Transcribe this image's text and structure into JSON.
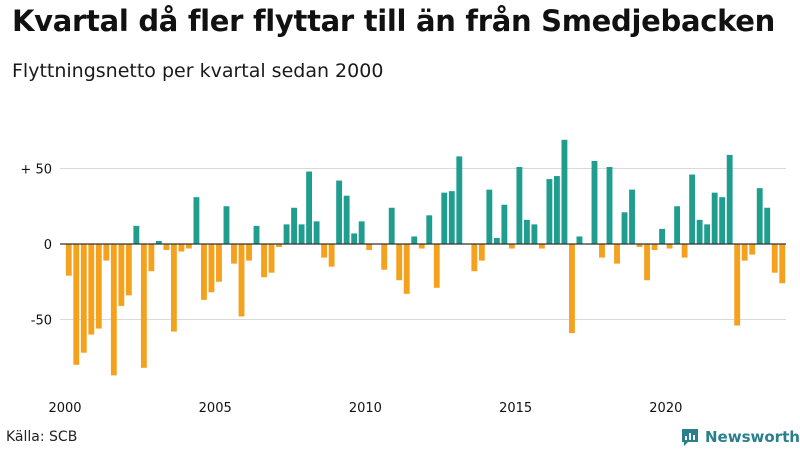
{
  "header": {
    "title": "Kvartal då fler flyttar till än från Smedjebacken",
    "subtitle": "Flyttningsnetto per kvartal sedan 2000"
  },
  "footer": {
    "source": "Källa: SCB",
    "brand": "Newsworthy"
  },
  "colors": {
    "positive": "#1f9e8f",
    "negative": "#f4a21e",
    "brand": "#2a7f8c"
  },
  "chart_data": {
    "type": "bar",
    "title": "Kvartal då fler flyttar till än från Smedjebacken",
    "subtitle": "Flyttningsnetto per kvartal sedan 2000",
    "xlabel": "",
    "ylabel": "",
    "ylim": [
      -95,
      75
    ],
    "grid": true,
    "y_ticks": [
      {
        "value": 50,
        "label": "+ 50"
      },
      {
        "value": 0,
        "label": "0"
      },
      {
        "value": -50,
        "label": "-50"
      }
    ],
    "x_ticks": [
      {
        "value": 2000,
        "label": "2000"
      },
      {
        "value": 2005,
        "label": "2005"
      },
      {
        "value": 2010,
        "label": "2010"
      },
      {
        "value": 2015,
        "label": "2015"
      },
      {
        "value": 2020,
        "label": "2020"
      }
    ],
    "start_year": 2000,
    "periods_per_year": 4,
    "values": [
      -21,
      -80,
      -72,
      -60,
      -56,
      -11,
      -87,
      -41,
      -34,
      12,
      -82,
      -18,
      2,
      -4,
      -58,
      -5,
      -3,
      31,
      -37,
      -32,
      -25,
      25,
      -13,
      -48,
      -11,
      12,
      -22,
      -19,
      -2,
      13,
      24,
      13,
      48,
      15,
      -9,
      -15,
      42,
      32,
      7,
      15,
      -4,
      0,
      -17,
      24,
      -24,
      -33,
      5,
      -3,
      19,
      -29,
      34,
      35,
      58,
      0,
      -18,
      -11,
      36,
      4,
      26,
      -3,
      51,
      16,
      13,
      -3,
      43,
      45,
      69,
      -59,
      5,
      0,
      55,
      -9,
      51,
      -13,
      21,
      36,
      -2,
      -24,
      -4,
      10,
      -3,
      25,
      -9,
      46,
      16,
      13,
      34,
      31,
      59,
      -54,
      -11,
      -7,
      37,
      24,
      -19,
      -26
    ]
  }
}
